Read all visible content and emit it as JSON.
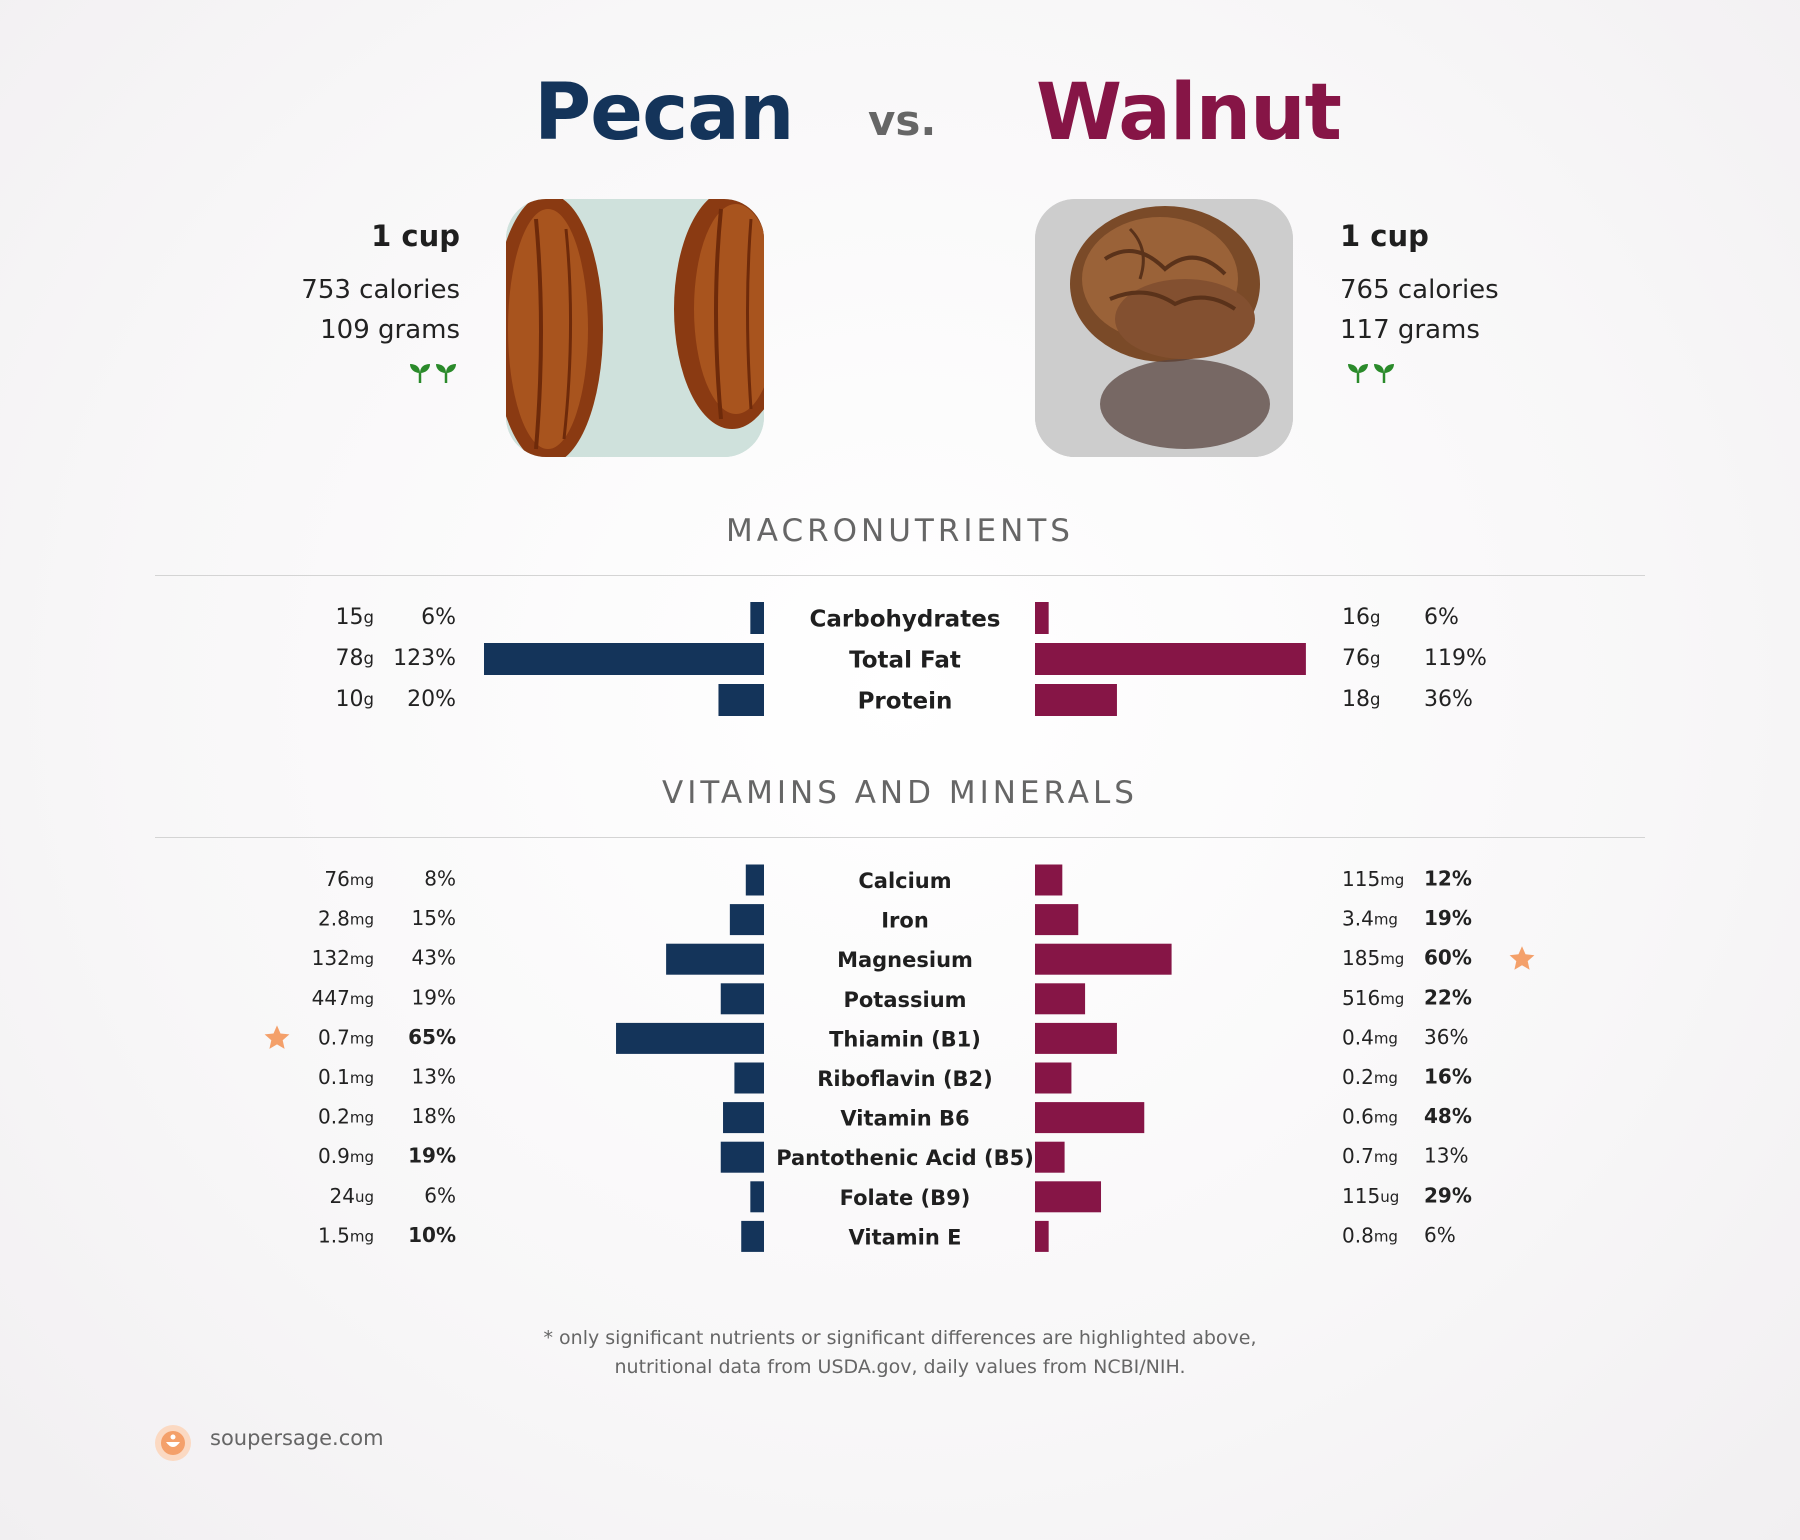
{
  "header": {
    "food_a": "Pecan",
    "vs": "vs.",
    "food_b": "Walnut"
  },
  "food_a": {
    "serving": "1 cup",
    "calories": "753 calories",
    "grams": "109 grams",
    "icons": [
      "sprout-icon",
      "sprout-icon"
    ]
  },
  "food_b": {
    "serving": "1 cup",
    "calories": "765 calories",
    "grams": "117 grams",
    "icons": [
      "sprout-icon",
      "sprout-icon"
    ]
  },
  "colors": {
    "food_a": "#14345a",
    "food_b": "#861546",
    "star": "#f4a06a",
    "sprout": "#2a8a2a"
  },
  "footer": {
    "note_line1": "* only significant nutrients or significant differences are highlighted above,",
    "note_line2": "nutritional data from USDA.gov, daily values from NCBI/NIH.",
    "brand": "soupersage.com"
  },
  "chart_data": [
    {
      "type": "bar",
      "title": "MACRONUTRIENTS",
      "categories": [
        "Carbohydrates",
        "Total Fat",
        "Protein"
      ],
      "series": [
        {
          "name": "Pecan",
          "amounts": [
            "15",
            "78",
            "10"
          ],
          "units": [
            "g",
            "g",
            "g"
          ],
          "values": [
            6,
            123,
            20
          ],
          "labels": [
            "6%",
            "123%",
            "20%"
          ],
          "bold": [
            false,
            false,
            false
          ],
          "star": [
            false,
            false,
            false
          ]
        },
        {
          "name": "Walnut",
          "amounts": [
            "16",
            "76",
            "18"
          ],
          "units": [
            "g",
            "g",
            "g"
          ],
          "values": [
            6,
            119,
            36
          ],
          "labels": [
            "6%",
            "119%",
            "36%"
          ],
          "bold": [
            false,
            false,
            false
          ],
          "star": [
            false,
            false,
            false
          ]
        }
      ]
    },
    {
      "type": "bar",
      "title": "VITAMINS AND MINERALS",
      "categories": [
        "Calcium",
        "Iron",
        "Magnesium",
        "Potassium",
        "Thiamin (B1)",
        "Riboflavin (B2)",
        "Vitamin B6",
        "Pantothenic Acid (B5)",
        "Folate (B9)",
        "Vitamin E"
      ],
      "series": [
        {
          "name": "Pecan",
          "amounts": [
            "76",
            "2.8",
            "132",
            "447",
            "0.7",
            "0.1",
            "0.2",
            "0.9",
            "24",
            "1.5"
          ],
          "units": [
            "mg",
            "mg",
            "mg",
            "mg",
            "mg",
            "mg",
            "mg",
            "mg",
            "ug",
            "mg"
          ],
          "values": [
            8,
            15,
            43,
            19,
            65,
            13,
            18,
            19,
            6,
            10
          ],
          "labels": [
            "8%",
            "15%",
            "43%",
            "19%",
            "65%",
            "13%",
            "18%",
            "19%",
            "6%",
            "10%"
          ],
          "bold": [
            false,
            false,
            false,
            false,
            true,
            false,
            false,
            true,
            false,
            true
          ],
          "star": [
            false,
            false,
            false,
            false,
            true,
            false,
            false,
            false,
            false,
            false
          ]
        },
        {
          "name": "Walnut",
          "amounts": [
            "115",
            "3.4",
            "185",
            "516",
            "0.4",
            "0.2",
            "0.6",
            "0.7",
            "115",
            "0.8"
          ],
          "units": [
            "mg",
            "mg",
            "mg",
            "mg",
            "mg",
            "mg",
            "mg",
            "mg",
            "ug",
            "mg"
          ],
          "values": [
            12,
            19,
            60,
            22,
            36,
            16,
            48,
            13,
            29,
            6
          ],
          "labels": [
            "12%",
            "19%",
            "60%",
            "22%",
            "36%",
            "16%",
            "48%",
            "13%",
            "29%",
            "6%"
          ],
          "bold": [
            true,
            true,
            true,
            true,
            false,
            true,
            true,
            false,
            true,
            false
          ],
          "star": [
            false,
            false,
            true,
            false,
            false,
            false,
            false,
            false,
            false,
            false
          ]
        }
      ]
    }
  ]
}
